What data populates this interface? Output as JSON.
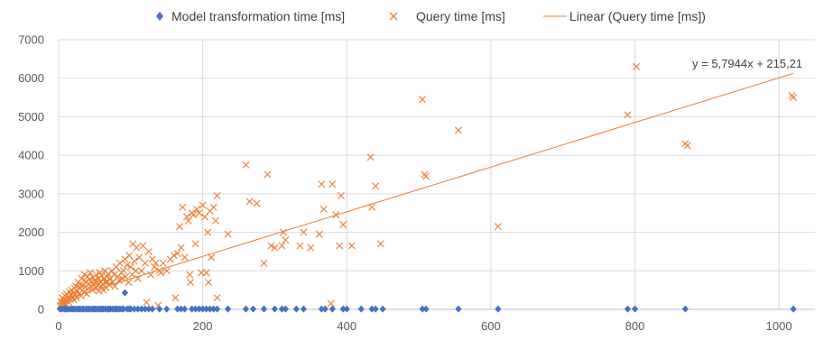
{
  "chart_data": {
    "type": "scatter",
    "title": "",
    "xlabel": "",
    "ylabel": "",
    "xlim": [
      0,
      1050
    ],
    "ylim": [
      0,
      7000
    ],
    "x_ticks": [
      0,
      200,
      400,
      600,
      800,
      1000
    ],
    "y_ticks": [
      0,
      1000,
      2000,
      3000,
      4000,
      5000,
      6000,
      7000
    ],
    "grid": true,
    "legend_position": "top",
    "legend": [
      "Model transformation time [ms]",
      "Query time [ms]",
      "Linear (Query time [ms])"
    ],
    "trendline": {
      "name": "Linear (Query time [ms])",
      "slope": 5.7944,
      "intercept": 215.21,
      "equation_label": "y = 5,7944x + 215,21",
      "color": "#ED7D31"
    },
    "series": [
      {
        "name": "Model transformation time [ms]",
        "marker": "diamond",
        "color": "#4472C4",
        "points": [
          [
            2,
            5
          ],
          [
            5,
            8
          ],
          [
            8,
            10
          ],
          [
            10,
            5
          ],
          [
            12,
            10
          ],
          [
            15,
            8
          ],
          [
            18,
            10
          ],
          [
            20,
            10
          ],
          [
            22,
            5
          ],
          [
            25,
            10
          ],
          [
            28,
            10
          ],
          [
            30,
            8
          ],
          [
            33,
            10
          ],
          [
            35,
            10
          ],
          [
            38,
            5
          ],
          [
            40,
            10
          ],
          [
            42,
            10
          ],
          [
            45,
            8
          ],
          [
            48,
            10
          ],
          [
            50,
            10
          ],
          [
            52,
            5
          ],
          [
            55,
            10
          ],
          [
            58,
            10
          ],
          [
            60,
            8
          ],
          [
            62,
            10
          ],
          [
            65,
            10
          ],
          [
            68,
            5
          ],
          [
            70,
            10
          ],
          [
            72,
            10
          ],
          [
            75,
            8
          ],
          [
            78,
            10
          ],
          [
            80,
            10
          ],
          [
            82,
            5
          ],
          [
            85,
            10
          ],
          [
            88,
            10
          ],
          [
            90,
            8
          ],
          [
            92,
            430
          ],
          [
            95,
            10
          ],
          [
            98,
            10
          ],
          [
            100,
            8
          ],
          [
            105,
            10
          ],
          [
            110,
            5
          ],
          [
            115,
            10
          ],
          [
            120,
            10
          ],
          [
            125,
            8
          ],
          [
            130,
            10
          ],
          [
            140,
            10
          ],
          [
            150,
            5
          ],
          [
            165,
            10
          ],
          [
            170,
            10
          ],
          [
            175,
            8
          ],
          [
            185,
            10
          ],
          [
            190,
            10
          ],
          [
            195,
            8
          ],
          [
            200,
            10
          ],
          [
            205,
            8
          ],
          [
            210,
            10
          ],
          [
            215,
            8
          ],
          [
            220,
            10
          ],
          [
            235,
            10
          ],
          [
            260,
            10
          ],
          [
            270,
            8
          ],
          [
            285,
            10
          ],
          [
            300,
            10
          ],
          [
            310,
            8
          ],
          [
            315,
            10
          ],
          [
            330,
            10
          ],
          [
            340,
            8
          ],
          [
            365,
            10
          ],
          [
            370,
            8
          ],
          [
            380,
            10
          ],
          [
            395,
            10
          ],
          [
            400,
            8
          ],
          [
            420,
            10
          ],
          [
            435,
            10
          ],
          [
            440,
            8
          ],
          [
            450,
            10
          ],
          [
            505,
            10
          ],
          [
            510,
            8
          ],
          [
            555,
            10
          ],
          [
            610,
            10
          ],
          [
            790,
            10
          ],
          [
            800,
            8
          ],
          [
            870,
            10
          ],
          [
            1020,
            10
          ]
        ]
      },
      {
        "name": "Query time [ms]",
        "marker": "x",
        "color": "#ED7D31",
        "points": [
          [
            2,
            100
          ],
          [
            3,
            200
          ],
          [
            5,
            150
          ],
          [
            5,
            300
          ],
          [
            6,
            80
          ],
          [
            7,
            250
          ],
          [
            8,
            180
          ],
          [
            9,
            350
          ],
          [
            10,
            120
          ],
          [
            11,
            400
          ],
          [
            12,
            220
          ],
          [
            13,
            300
          ],
          [
            14,
            180
          ],
          [
            15,
            450
          ],
          [
            16,
            260
          ],
          [
            17,
            380
          ],
          [
            18,
            500
          ],
          [
            19,
            320
          ],
          [
            20,
            420
          ],
          [
            21,
            250
          ],
          [
            22,
            550
          ],
          [
            23,
            380
          ],
          [
            24,
            600
          ],
          [
            25,
            300
          ],
          [
            26,
            480
          ],
          [
            27,
            700
          ],
          [
            28,
            400
          ],
          [
            29,
            560
          ],
          [
            30,
            650
          ],
          [
            31,
            350
          ],
          [
            32,
            800
          ],
          [
            33,
            500
          ],
          [
            34,
            620
          ],
          [
            35,
            450
          ],
          [
            36,
            900
          ],
          [
            37,
            580
          ],
          [
            38,
            720
          ],
          [
            39,
            400
          ],
          [
            40,
            850
          ],
          [
            41,
            660
          ],
          [
            42,
            550
          ],
          [
            43,
            780
          ],
          [
            44,
            950
          ],
          [
            45,
            600
          ],
          [
            46,
            700
          ],
          [
            47,
            500
          ],
          [
            48,
            820
          ],
          [
            49,
            650
          ],
          [
            50,
            750
          ],
          [
            51,
            560
          ],
          [
            52,
            900
          ],
          [
            53,
            700
          ],
          [
            54,
            620
          ],
          [
            55,
            800
          ],
          [
            56,
            480
          ],
          [
            57,
            950
          ],
          [
            58,
            720
          ],
          [
            59,
            600
          ],
          [
            60,
            880
          ],
          [
            61,
            650
          ],
          [
            62,
            500
          ],
          [
            63,
            780
          ],
          [
            64,
            1000
          ],
          [
            65,
            700
          ],
          [
            66,
            560
          ],
          [
            67,
            850
          ],
          [
            68,
            720
          ],
          [
            69,
            920
          ],
          [
            70,
            640
          ],
          [
            72,
            800
          ],
          [
            74,
            1000
          ],
          [
            75,
            700
          ],
          [
            77,
            900
          ],
          [
            78,
            600
          ],
          [
            80,
            1100
          ],
          [
            82,
            850
          ],
          [
            84,
            750
          ],
          [
            85,
            1200
          ],
          [
            87,
            950
          ],
          [
            88,
            800
          ],
          [
            90,
            1000
          ],
          [
            92,
            1300
          ],
          [
            93,
            850
          ],
          [
            95,
            1150
          ],
          [
            97,
            700
          ],
          [
            98,
            1400
          ],
          [
            100,
            1100
          ],
          [
            102,
            900
          ],
          [
            103,
            1700
          ],
          [
            105,
            1250
          ],
          [
            107,
            1000
          ],
          [
            108,
            1600
          ],
          [
            110,
            800
          ],
          [
            112,
            1350
          ],
          [
            115,
            1000
          ],
          [
            117,
            1650
          ],
          [
            120,
            1200
          ],
          [
            122,
            180
          ],
          [
            125,
            1500
          ],
          [
            128,
            900
          ],
          [
            130,
            1300
          ],
          [
            133,
            1100
          ],
          [
            135,
            1200
          ],
          [
            138,
            100
          ],
          [
            140,
            1000
          ],
          [
            142,
            950
          ],
          [
            145,
            1200
          ],
          [
            150,
            1000
          ],
          [
            155,
            1300
          ],
          [
            160,
            1400
          ],
          [
            162,
            300
          ],
          [
            165,
            1450
          ],
          [
            168,
            2150
          ],
          [
            170,
            1600
          ],
          [
            172,
            2650
          ],
          [
            175,
            1350
          ],
          [
            178,
            2400
          ],
          [
            180,
            2300
          ],
          [
            182,
            900
          ],
          [
            183,
            700
          ],
          [
            185,
            2500
          ],
          [
            187,
            2450
          ],
          [
            190,
            1700
          ],
          [
            192,
            2600
          ],
          [
            195,
            2500
          ],
          [
            198,
            950
          ],
          [
            200,
            2700
          ],
          [
            203,
            2400
          ],
          [
            205,
            950
          ],
          [
            207,
            2000
          ],
          [
            208,
            700
          ],
          [
            210,
            2550
          ],
          [
            212,
            1350
          ],
          [
            215,
            2650
          ],
          [
            218,
            2300
          ],
          [
            220,
            2950
          ],
          [
            220,
            300
          ],
          [
            235,
            1950
          ],
          [
            260,
            3750
          ],
          [
            265,
            2800
          ],
          [
            275,
            2750
          ],
          [
            285,
            1200
          ],
          [
            290,
            3500
          ],
          [
            295,
            1650
          ],
          [
            300,
            1600
          ],
          [
            310,
            1650
          ],
          [
            312,
            2000
          ],
          [
            315,
            1800
          ],
          [
            335,
            1650
          ],
          [
            340,
            2000
          ],
          [
            350,
            1600
          ],
          [
            362,
            1950
          ],
          [
            365,
            3250
          ],
          [
            368,
            2600
          ],
          [
            378,
            150
          ],
          [
            380,
            3250
          ],
          [
            385,
            2450
          ],
          [
            390,
            1650
          ],
          [
            392,
            2950
          ],
          [
            395,
            2200
          ],
          [
            407,
            1650
          ],
          [
            433,
            3950
          ],
          [
            435,
            2650
          ],
          [
            440,
            3200
          ],
          [
            447,
            1700
          ],
          [
            505,
            5450
          ],
          [
            508,
            3500
          ],
          [
            510,
            3450
          ],
          [
            555,
            4650
          ],
          [
            610,
            2150
          ],
          [
            790,
            5050
          ],
          [
            802,
            6300
          ],
          [
            870,
            4300
          ],
          [
            873,
            4250
          ],
          [
            1018,
            5550
          ],
          [
            1020,
            5500
          ]
        ]
      }
    ]
  }
}
